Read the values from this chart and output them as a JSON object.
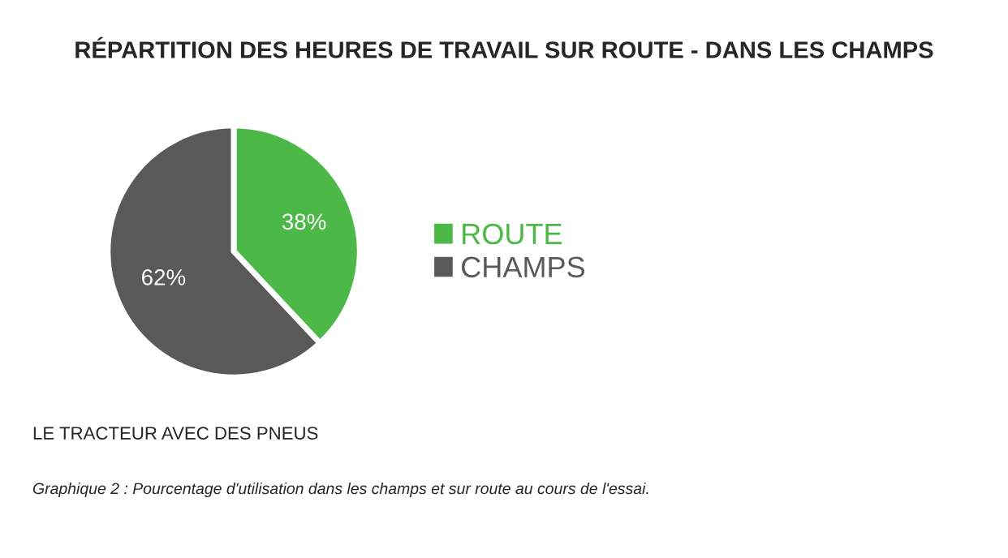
{
  "chart_data": {
    "type": "pie",
    "title": "RÉPARTITION DES HEURES DE TRAVAIL SUR ROUTE - DANS LES CHAMPS",
    "categories": [
      "ROUTE",
      "CHAMPS"
    ],
    "values": [
      38,
      62
    ],
    "colors": [
      "#4cb847",
      "#595959"
    ],
    "value_labels": [
      "38%",
      "62%"
    ],
    "legend": "right",
    "annotations": [
      "LE TRACTEUR AVEC DES PNEUS",
      "Graphique 2 : Pourcentage d'utilisation dans les champs et sur route au cours de l'essai."
    ]
  }
}
